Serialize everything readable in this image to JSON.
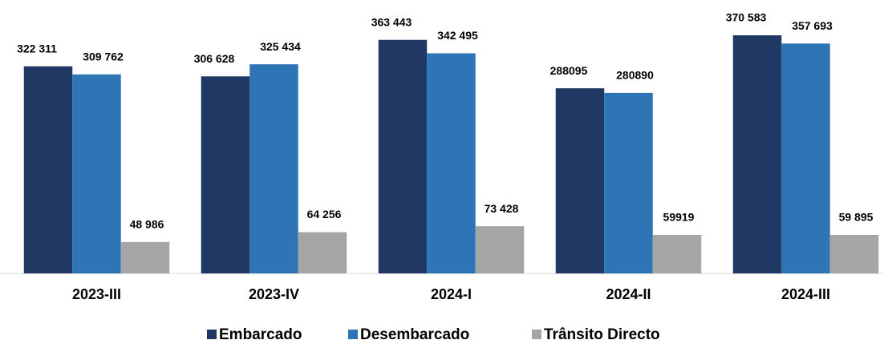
{
  "chart_data": {
    "type": "bar",
    "categories": [
      "2023-III",
      "2023-IV",
      "2024-I",
      "2024-II",
      "2024-III"
    ],
    "series": [
      {
        "name": "Embarcado",
        "color": "#203864",
        "values": [
          322311,
          306628,
          363443,
          288095,
          370583
        ],
        "value_labels": [
          "322 311",
          "306 628",
          "363 443",
          "288095",
          "370 583"
        ]
      },
      {
        "name": "Desembarcado",
        "color": "#2e75b6",
        "values": [
          309762,
          325434,
          342495,
          280890,
          357693
        ],
        "value_labels": [
          "309 762",
          "325 434",
          "342 495",
          "280890",
          "357 693"
        ]
      },
      {
        "name": "Trânsito Directo",
        "color": "#a5a5a5",
        "values": [
          48986,
          64256,
          73428,
          59919,
          59895
        ],
        "value_labels": [
          "48 986",
          "64 256",
          "73 428",
          "59919",
          "59 895"
        ]
      }
    ]
  }
}
